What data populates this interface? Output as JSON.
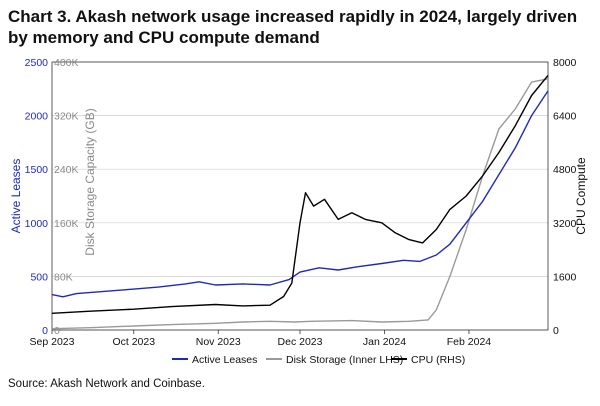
{
  "title": "Chart 3. Akash network usage increased rapidly in 2024, largely driven by memory and CPU compute demand",
  "source": "Source: Akash Network and Coinbase.",
  "colors": {
    "active": "#1f2bb8",
    "disk": "#9a9a9a",
    "cpu": "#000000",
    "leftAxis": "#1f2bb8",
    "innerAxis": "#8a8a8a"
  },
  "chart_data": {
    "type": "line",
    "x_range": [
      "2023-09-01",
      "2024-03-01"
    ],
    "x_ticks": [
      {
        "label": "Sep 2023",
        "date": "2023-09-01"
      },
      {
        "label": "Oct 2023",
        "date": "2023-10-01"
      },
      {
        "label": "Nov 2023",
        "date": "2023-11-01"
      },
      {
        "label": "Dec 2023",
        "date": "2023-12-01"
      },
      {
        "label": "Jan 2024",
        "date": "2024-01-01"
      },
      {
        "label": "Feb 2024",
        "date": "2024-02-01"
      }
    ],
    "axes": {
      "left": {
        "label": "Active Leases",
        "min": 0,
        "max": 2500,
        "ticks": [
          0,
          500,
          1000,
          1500,
          2000,
          2500
        ]
      },
      "inner": {
        "label": "Disk Storage Capacity (GB)",
        "min": 0,
        "max": 400000,
        "ticks": [
          0,
          80000,
          160000,
          240000,
          320000,
          400000
        ],
        "tick_labels": [
          "0",
          "80K",
          "160K",
          "240K",
          "320K",
          "400K"
        ]
      },
      "right": {
        "label": "CPU Compute",
        "min": 0,
        "max": 8000,
        "ticks": [
          0,
          1600,
          3200,
          4800,
          6400,
          8000
        ]
      }
    },
    "series": [
      {
        "name": "Active Leases",
        "axis": "left",
        "points": [
          [
            "2023-09-01",
            330
          ],
          [
            "2023-09-05",
            310
          ],
          [
            "2023-09-10",
            340
          ],
          [
            "2023-09-20",
            360
          ],
          [
            "2023-09-30",
            380
          ],
          [
            "2023-10-10",
            400
          ],
          [
            "2023-10-20",
            430
          ],
          [
            "2023-10-25",
            450
          ],
          [
            "2023-10-31",
            420
          ],
          [
            "2023-11-10",
            430
          ],
          [
            "2023-11-20",
            420
          ],
          [
            "2023-11-27",
            470
          ],
          [
            "2023-12-01",
            540
          ],
          [
            "2023-12-08",
            580
          ],
          [
            "2023-12-15",
            560
          ],
          [
            "2023-12-22",
            590
          ],
          [
            "2023-12-31",
            620
          ],
          [
            "2024-01-08",
            650
          ],
          [
            "2024-01-14",
            640
          ],
          [
            "2024-01-20",
            700
          ],
          [
            "2024-01-25",
            800
          ],
          [
            "2024-01-31",
            1000
          ],
          [
            "2024-02-06",
            1200
          ],
          [
            "2024-02-12",
            1450
          ],
          [
            "2024-02-18",
            1700
          ],
          [
            "2024-02-24",
            2000
          ],
          [
            "2024-03-01",
            2230
          ]
        ]
      },
      {
        "name": "Disk Storage (Inner LHS)",
        "axis": "inner",
        "points": [
          [
            "2023-09-01",
            2000
          ],
          [
            "2023-09-15",
            3500
          ],
          [
            "2023-10-01",
            6000
          ],
          [
            "2023-10-15",
            8000
          ],
          [
            "2023-10-31",
            10000
          ],
          [
            "2023-11-10",
            12000
          ],
          [
            "2023-11-20",
            13000
          ],
          [
            "2023-11-29",
            12000
          ],
          [
            "2023-12-05",
            13000
          ],
          [
            "2023-12-20",
            14000
          ],
          [
            "2023-12-31",
            12000
          ],
          [
            "2024-01-10",
            13000
          ],
          [
            "2024-01-17",
            15000
          ],
          [
            "2024-01-20",
            30000
          ],
          [
            "2024-01-25",
            80000
          ],
          [
            "2024-01-31",
            150000
          ],
          [
            "2024-02-06",
            230000
          ],
          [
            "2024-02-12",
            300000
          ],
          [
            "2024-02-18",
            330000
          ],
          [
            "2024-02-24",
            370000
          ],
          [
            "2024-03-01",
            375000
          ]
        ]
      },
      {
        "name": "CPU (RHS)",
        "axis": "right",
        "points": [
          [
            "2023-09-01",
            500
          ],
          [
            "2023-09-15",
            560
          ],
          [
            "2023-10-01",
            620
          ],
          [
            "2023-10-15",
            700
          ],
          [
            "2023-10-31",
            760
          ],
          [
            "2023-11-10",
            720
          ],
          [
            "2023-11-20",
            740
          ],
          [
            "2023-11-25",
            1000
          ],
          [
            "2023-11-28",
            1400
          ],
          [
            "2023-12-01",
            3200
          ],
          [
            "2023-12-03",
            4100
          ],
          [
            "2023-12-06",
            3700
          ],
          [
            "2023-12-10",
            3900
          ],
          [
            "2023-12-15",
            3300
          ],
          [
            "2023-12-20",
            3500
          ],
          [
            "2023-12-25",
            3300
          ],
          [
            "2023-12-31",
            3200
          ],
          [
            "2024-01-05",
            2900
          ],
          [
            "2024-01-10",
            2700
          ],
          [
            "2024-01-15",
            2600
          ],
          [
            "2024-01-20",
            3000
          ],
          [
            "2024-01-25",
            3600
          ],
          [
            "2024-01-31",
            4000
          ],
          [
            "2024-02-06",
            4600
          ],
          [
            "2024-02-12",
            5300
          ],
          [
            "2024-02-18",
            6100
          ],
          [
            "2024-02-24",
            7000
          ],
          [
            "2024-03-01",
            7600
          ]
        ]
      }
    ],
    "legend": {
      "position": "bottom",
      "entries": [
        "Active Leases",
        "Disk Storage (Inner LHS)",
        "CPU (RHS)"
      ]
    }
  }
}
